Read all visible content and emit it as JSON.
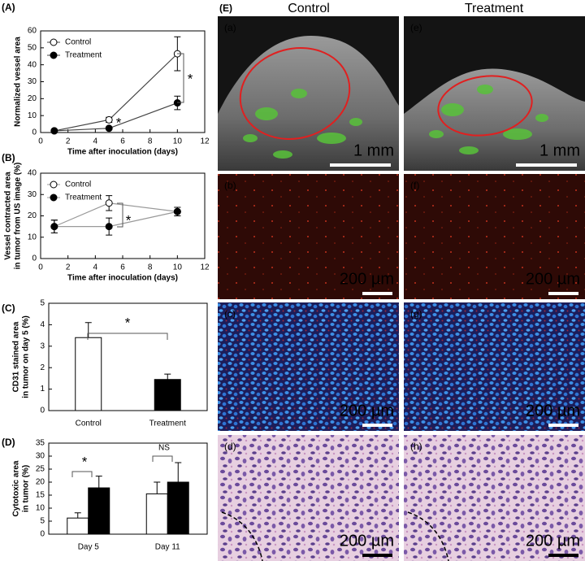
{
  "chart_data": [
    {
      "type": "line",
      "label": "(A)",
      "xlabel": "Time after inoculation (days)",
      "ylabel": [
        "Normalized vessel area"
      ],
      "xlim": [
        0,
        12
      ],
      "xticks": [
        0,
        2,
        4,
        6,
        8,
        10,
        12
      ],
      "ylim": [
        0,
        60
      ],
      "yticks": [
        0,
        10,
        20,
        30,
        40,
        50,
        60
      ],
      "line_color": "#444444",
      "legend": "upper left",
      "annotations": [
        "*",
        "*"
      ],
      "series": [
        {
          "name": "Control",
          "color": "#ffffff",
          "x": [
            1,
            5,
            10
          ],
          "values": [
            1,
            7.5,
            46.5
          ],
          "errors": [
            0.5,
            1.5,
            10
          ]
        },
        {
          "name": "Treatment",
          "color": "#000000",
          "x": [
            1,
            5,
            10
          ],
          "values": [
            1,
            2.5,
            17.5
          ],
          "errors": [
            0.5,
            0.5,
            4
          ]
        }
      ]
    },
    {
      "type": "line",
      "label": "(B)",
      "xlabel": "Time after inoculation (days)",
      "ylabel": [
        "Vessel contracted area",
        "in tumor from US image (%)"
      ],
      "xlim": [
        0,
        12
      ],
      "xticks": [
        0,
        2,
        4,
        6,
        8,
        10,
        12
      ],
      "ylim": [
        0,
        40
      ],
      "yticks": [
        0,
        10,
        20,
        30,
        40
      ],
      "line_color": "#999999",
      "legend": "upper left",
      "annotations": [
        "*"
      ],
      "series": [
        {
          "name": "Control",
          "color": "#ffffff",
          "x": [
            1,
            5,
            10
          ],
          "values": [
            15,
            26,
            22
          ],
          "errors": [
            3,
            3.5,
            2
          ]
        },
        {
          "name": "Treatment",
          "color": "#000000",
          "x": [
            1,
            5,
            10
          ],
          "values": [
            15,
            15,
            22
          ],
          "errors": [
            3,
            4,
            2
          ]
        }
      ]
    },
    {
      "type": "bar",
      "label": "(C)",
      "ylabel": [
        "CD31 stained area",
        "in tumor on day 5 (%)"
      ],
      "categories": [
        "Control",
        "Treatment"
      ],
      "ylim": [
        0,
        5
      ],
      "yticks": [
        0,
        1,
        2,
        3,
        4,
        5
      ],
      "annotations": [
        "*"
      ],
      "series": [
        {
          "color": "#ffffff",
          "values": [
            3.4,
            1.45
          ],
          "errors": [
            0.7,
            0.25
          ],
          "colors": [
            "#ffffff",
            "#000000"
          ]
        }
      ]
    },
    {
      "type": "bar",
      "label": "(D)",
      "ylabel": [
        "Cytotoxic area",
        "in tumor (%)"
      ],
      "categories": [
        "Day 5",
        "Day 11"
      ],
      "ylim": [
        0,
        35
      ],
      "yticks": [
        0,
        5,
        10,
        15,
        20,
        25,
        30,
        35
      ],
      "annotations": [
        "*",
        "NS"
      ],
      "series": [
        {
          "color": "#ffffff",
          "values": [
            6.2,
            15.5
          ],
          "errors": [
            2,
            4.5
          ]
        },
        {
          "color": "#000000",
          "values": [
            17.8,
            20
          ],
          "errors": [
            4.5,
            7.5
          ]
        }
      ]
    }
  ],
  "figure_e": {
    "label": "(E)",
    "columns": [
      "Control",
      "Treatment"
    ],
    "panels": [
      {
        "label": "(a)",
        "scale": "1 mm"
      },
      {
        "label": "(b)",
        "scale": "200 µm"
      },
      {
        "label": "(c)",
        "scale": "200 µm"
      },
      {
        "label": "(d)",
        "scale": "200 µm"
      },
      {
        "label": "(e)",
        "scale": "1 mm"
      },
      {
        "label": "(f)",
        "scale": "200 µm"
      },
      {
        "label": "(g)",
        "scale": "200 µm"
      },
      {
        "label": "(h)",
        "scale": "200 µm"
      }
    ]
  }
}
